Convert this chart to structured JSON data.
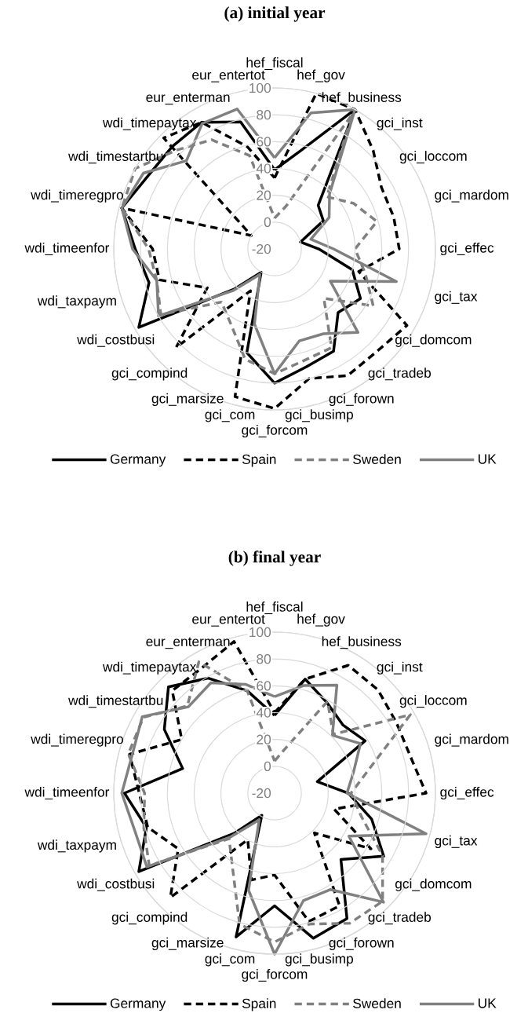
{
  "chart_data": [
    {
      "type": "radar",
      "title": "(a) initial year",
      "categories": [
        "hef_fiscal",
        "hef_gov",
        "hef_business",
        "gci_inst",
        "gci_loccom",
        "gci_mardom",
        "gci_effec",
        "gci_tax",
        "gci_domcom",
        "gci_tradeb",
        "gci_forown",
        "gci_busimp",
        "gci_forcom",
        "gci_com",
        "gci_marsize",
        "gci_compind",
        "wdi_costbusi",
        "wdi_taxpaym",
        "wdi_timeenfor",
        "wdi_timeregpro",
        "wdi_timestartbu",
        "wdi_timepaytax",
        "eur_enterman",
        "eur_entertot"
      ],
      "ylim": [
        -20,
        100
      ],
      "yticks": [
        {
          "value": -20,
          "label": "-20"
        },
        {
          "value": 0,
          "label": "0"
        },
        {
          "value": 20,
          "label": "20"
        },
        {
          "value": 40,
          "label": "40"
        },
        {
          "value": 60,
          "label": "60"
        },
        {
          "value": 80,
          "label": "80"
        },
        {
          "value": 100,
          "label": "100"
        }
      ],
      "grid": true,
      "legend": "bottom",
      "series": [
        {
          "name": "Germany",
          "color": "#000000",
          "line_style": "solid",
          "values": [
            39,
            56,
            100,
            26,
            22,
            0,
            13,
            40,
            54,
            47,
            68,
            71,
            80,
            60,
            0,
            22,
            97,
            77,
            84,
            98,
            89,
            88,
            89,
            78
          ]
        },
        {
          "name": "Spain",
          "color": "#000000",
          "line_style": "dashed",
          "values": [
            33,
            100,
            100,
            84,
            72,
            72,
            73,
            45,
            94,
            88,
            89,
            80,
            99,
            94,
            16,
            84,
            38,
            69,
            71,
            98,
            0,
            97,
            89,
            59
          ]
        },
        {
          "name": "Sweden",
          "color": "#808080",
          "line_style": "dashed",
          "values": [
            3,
            13,
            96,
            35,
            48,
            59,
            40,
            50,
            65,
            32,
            65,
            66,
            73,
            65,
            45,
            36,
            78,
            71,
            74,
            98,
            100,
            84,
            74,
            52
          ]
        },
        {
          "name": "UK",
          "color": "#808080",
          "line_style": "solid",
          "values": [
            48,
            85,
            100,
            38,
            27,
            8,
            24,
            74,
            28,
            68,
            53,
            51,
            73,
            38,
            2,
            24,
            80,
            71,
            86,
            98,
            93,
            73,
            88,
            88
          ]
        }
      ]
    },
    {
      "type": "radar",
      "title": "(b) final year",
      "categories": [
        "hef_fiscal",
        "hef_gov",
        "hef_business",
        "gci_inst",
        "gci_loccom",
        "gci_mardom",
        "gci_effec",
        "gci_tax",
        "gci_domcom",
        "gci_tradeb",
        "gci_forown",
        "gci_busimp",
        "gci_forcom",
        "gci_com",
        "gci_marsize",
        "gci_compind",
        "wdi_costbusi",
        "wdi_taxpaym",
        "wdi_timeenfor",
        "wdi_timeregpro",
        "wdi_timestartbu",
        "wdi_timepaytax",
        "eur_enterman",
        "eur_entertot"
      ],
      "ylim": [
        -20,
        100
      ],
      "yticks": [
        {
          "value": -20,
          "label": "-20"
        },
        {
          "value": 0,
          "label": "0"
        },
        {
          "value": 20,
          "label": "20"
        },
        {
          "value": 40,
          "label": "40"
        },
        {
          "value": 60,
          "label": "60"
        },
        {
          "value": 80,
          "label": "80"
        },
        {
          "value": 100,
          "label": "100"
        }
      ],
      "grid": true,
      "legend": "bottom",
      "series": [
        {
          "name": "Germany",
          "color": "#000000",
          "line_style": "solid",
          "values": [
            38,
            68,
            58,
            52,
            58,
            13,
            35,
            55,
            74,
            50,
            88,
            92,
            64,
            91,
            -1,
            22,
            97,
            79,
            92,
            51,
            75,
            92,
            79,
            59
          ]
        },
        {
          "name": "Spain",
          "color": "#000000",
          "line_style": "dashed",
          "values": [
            40,
            68,
            90,
            89,
            85,
            85,
            93,
            26,
            63,
            22,
            77,
            79,
            41,
            47,
            20,
            90,
            63,
            78,
            81,
            92,
            60,
            88,
            88,
            97
          ]
        },
        {
          "name": "Sweden",
          "color": "#808080",
          "line_style": "dashed",
          "values": [
            4,
            16,
            59,
            42,
            97,
            54,
            37,
            47,
            73,
            94,
            92,
            81,
            91,
            81,
            43,
            28,
            88,
            81,
            77,
            93,
            93,
            72,
            93,
            59
          ]
        },
        {
          "name": "UK",
          "color": "#808080",
          "line_style": "solid",
          "values": [
            52,
            63,
            73,
            41,
            54,
            41,
            34,
            97,
            44,
            95,
            63,
            63,
            100,
            55,
            3,
            26,
            90,
            88,
            94,
            90,
            94,
            71,
            75,
            64
          ]
        }
      ]
    }
  ]
}
